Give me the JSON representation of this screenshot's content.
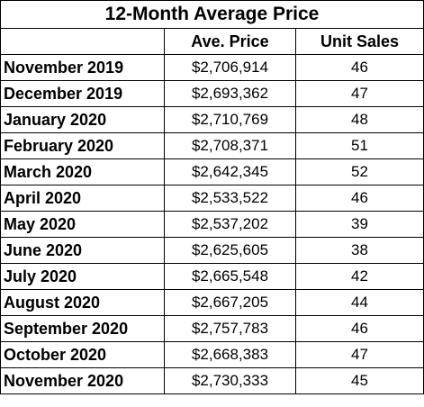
{
  "table": {
    "title": "12-Month Average Price",
    "headers": [
      "",
      "Ave. Price",
      "Unit Sales"
    ],
    "rows": [
      {
        "month": "November 2019",
        "price": "$2,706,914",
        "units": "46"
      },
      {
        "month": "December 2019",
        "price": "$2,693,362",
        "units": "47"
      },
      {
        "month": "January 2020",
        "price": "$2,710,769",
        "units": "48"
      },
      {
        "month": "February 2020",
        "price": "$2,708,371",
        "units": "51"
      },
      {
        "month": "March 2020",
        "price": "$2,642,345",
        "units": "52"
      },
      {
        "month": "April 2020",
        "price": "$2,533,522",
        "units": "46"
      },
      {
        "month": "May 2020",
        "price": "$2,537,202",
        "units": "39"
      },
      {
        "month": "June 2020",
        "price": "$2,625,605",
        "units": "38"
      },
      {
        "month": "July 2020",
        "price": "$2,665,548",
        "units": "42"
      },
      {
        "month": "August 2020",
        "price": "$2,667,205",
        "units": "44"
      },
      {
        "month": "September 2020",
        "price": "$2,757,783",
        "units": "46"
      },
      {
        "month": "October 2020",
        "price": "$2,668,383",
        "units": "47"
      },
      {
        "month": "November 2020",
        "price": "$2,730,333",
        "units": "45"
      }
    ]
  }
}
